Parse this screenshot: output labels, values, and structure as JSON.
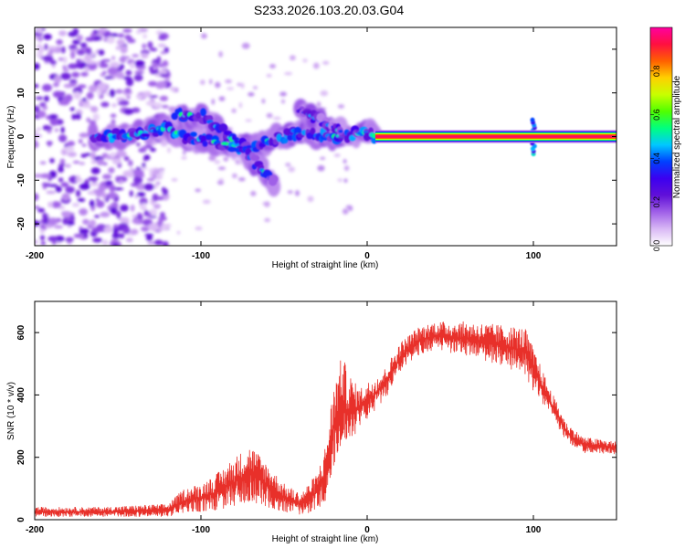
{
  "figure_title": "S233.2026.103.20.03.G04",
  "colors": {
    "axis": "#000000",
    "snr_line": "#e8302a",
    "background": "#ffffff"
  },
  "chart_data": [
    {
      "type": "heatmap",
      "name": "spectrogram",
      "xlabel": "Height of straight line (km)",
      "ylabel": "Frequency (Hz)",
      "xlim": [
        -200,
        150
      ],
      "ylim": [
        -25,
        25
      ],
      "xticks": [
        -200,
        -100,
        0,
        100
      ],
      "yticks": [
        -20,
        -10,
        0,
        10,
        20
      ],
      "colorbar": {
        "label": "Normalized spectral amplitude",
        "range": [
          0,
          1
        ],
        "ticks": [
          "0.0",
          "0.2",
          "0.4",
          "0.6",
          "0.8"
        ],
        "tick_values": [
          0.0,
          0.2,
          0.4,
          0.6,
          0.8
        ],
        "colormap": [
          "#ffffff",
          "#d9b8f5",
          "#a060e8",
          "#6010d8",
          "#3c00f0",
          "#0040ff",
          "#00c8ff",
          "#00ff80",
          "#50ff00",
          "#c8ff00",
          "#ffd000",
          "#ff6000",
          "#ff1040",
          "#ff00a0"
        ]
      },
      "features": [
        {
          "kind": "noise",
          "x_range": [
            -200,
            -120
          ],
          "f_range": [
            -25,
            25
          ],
          "amplitude": 0.12
        },
        {
          "kind": "ridge",
          "points": [
            [
              -165,
              0
            ],
            [
              -140,
              0.5
            ],
            [
              -120,
              2
            ],
            [
              -110,
              0
            ],
            [
              -95,
              -1
            ],
            [
              -80,
              -2
            ],
            [
              -70,
              -2.5
            ],
            [
              -60,
              -1
            ],
            [
              -45,
              0.5
            ],
            [
              -30,
              0.5
            ],
            [
              -20,
              0
            ],
            [
              -10,
              0.5
            ],
            [
              0,
              1
            ],
            [
              5,
              0
            ]
          ],
          "amplitude": 0.3
        },
        {
          "kind": "ridge",
          "points": [
            [
              -115,
              5
            ],
            [
              -100,
              5
            ],
            [
              -90,
              2
            ],
            [
              -80,
              -1
            ],
            [
              -70,
              -5
            ],
            [
              -60,
              -9
            ],
            [
              -55,
              -11
            ]
          ],
          "amplitude": 0.25
        },
        {
          "kind": "ridge",
          "points": [
            [
              -40,
              6
            ],
            [
              -30,
              4
            ],
            [
              -20,
              2
            ],
            [
              -15,
              1
            ]
          ],
          "amplitude": 0.2
        },
        {
          "kind": "carrier",
          "x_range": [
            5,
            150
          ],
          "frequency": 0,
          "amplitude": 0.95
        },
        {
          "kind": "spike",
          "x": 100,
          "f_range": [
            -4,
            4
          ],
          "amplitude": 0.5
        }
      ]
    },
    {
      "type": "line",
      "name": "snr",
      "xlabel": "Height of straight line (km)",
      "ylabel": "SNR (10 * v/v)",
      "xlim": [
        -200,
        150
      ],
      "ylim": [
        0,
        700
      ],
      "xticks": [
        -200,
        -100,
        0,
        100
      ],
      "yticks": [
        0,
        200,
        400,
        600
      ],
      "series": [
        {
          "name": "SNR",
          "envelope": [
            {
              "x": -200,
              "y": 25,
              "noise": 15
            },
            {
              "x": -160,
              "y": 25,
              "noise": 15
            },
            {
              "x": -120,
              "y": 30,
              "noise": 20
            },
            {
              "x": -110,
              "y": 60,
              "noise": 40
            },
            {
              "x": -100,
              "y": 70,
              "noise": 45
            },
            {
              "x": -90,
              "y": 90,
              "noise": 60
            },
            {
              "x": -80,
              "y": 120,
              "noise": 80
            },
            {
              "x": -70,
              "y": 150,
              "noise": 90
            },
            {
              "x": -60,
              "y": 110,
              "noise": 70
            },
            {
              "x": -50,
              "y": 70,
              "noise": 45
            },
            {
              "x": -40,
              "y": 50,
              "noise": 35
            },
            {
              "x": -30,
              "y": 90,
              "noise": 60
            },
            {
              "x": -25,
              "y": 150,
              "noise": 90
            },
            {
              "x": -20,
              "y": 300,
              "noise": 140
            },
            {
              "x": -15,
              "y": 380,
              "noise": 150
            },
            {
              "x": -12,
              "y": 350,
              "noise": 130
            },
            {
              "x": -5,
              "y": 360,
              "noise": 60
            },
            {
              "x": 0,
              "y": 380,
              "noise": 60
            },
            {
              "x": 10,
              "y": 430,
              "noise": 50
            },
            {
              "x": 20,
              "y": 520,
              "noise": 50
            },
            {
              "x": 30,
              "y": 570,
              "noise": 45
            },
            {
              "x": 40,
              "y": 590,
              "noise": 45
            },
            {
              "x": 60,
              "y": 580,
              "noise": 55
            },
            {
              "x": 80,
              "y": 560,
              "noise": 65
            },
            {
              "x": 95,
              "y": 540,
              "noise": 75
            },
            {
              "x": 100,
              "y": 480,
              "noise": 70
            },
            {
              "x": 110,
              "y": 380,
              "noise": 40
            },
            {
              "x": 120,
              "y": 280,
              "noise": 30
            },
            {
              "x": 130,
              "y": 240,
              "noise": 25
            },
            {
              "x": 150,
              "y": 230,
              "noise": 20
            }
          ]
        }
      ]
    }
  ]
}
